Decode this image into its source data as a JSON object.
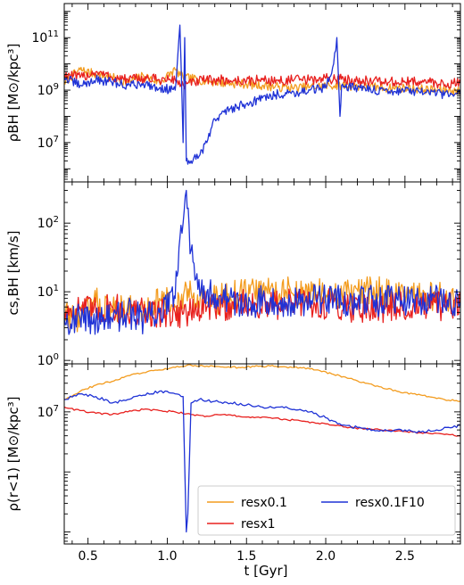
{
  "figure": {
    "x_label": "t [Gyr]",
    "x_tick_labels": [
      "0.5",
      "1.0",
      "1.5",
      "2.0",
      "2.5"
    ]
  },
  "legend": {
    "entries": [
      {
        "name": "resx0.1",
        "color": "#f39c1f"
      },
      {
        "name": "resx1",
        "color": "#e8201e"
      },
      {
        "name": "resx0.1F10",
        "color": "#1f32d6"
      }
    ]
  },
  "chart_data": [
    {
      "type": "line",
      "ylabel": "ρBH [M⊙/kpc³]",
      "xlim": [
        0.35,
        2.85
      ],
      "ylim_log10": [
        5.5,
        12.3
      ],
      "yscale": "log",
      "ytick_labels": [
        "10^7",
        "10^9",
        "10^11"
      ],
      "grid": false,
      "series": [
        {
          "name": "resx0.1",
          "x": [
            0.35,
            0.45,
            0.55,
            0.65,
            0.75,
            0.85,
            0.95,
            1.05,
            1.1,
            1.2,
            1.3,
            1.4,
            1.5,
            1.6,
            1.7,
            1.8,
            1.9,
            2.0,
            2.1,
            2.2,
            2.3,
            2.4,
            2.5,
            2.6,
            2.7,
            2.8,
            2.85
          ],
          "y": [
            2000000000.0,
            6000000000.0,
            4000000000.0,
            3000000000.0,
            2000000000.0,
            3500000000.0,
            2000000000.0,
            6000000000.0,
            3000000000.0,
            2500000000.0,
            2000000000.0,
            1800000000.0,
            1700000000.0,
            1500000000.0,
            1300000000.0,
            1200000000.0,
            1300000000.0,
            1500000000.0,
            1500000000.0,
            1400000000.0,
            1300000000.0,
            1200000000.0,
            1200000000.0,
            1100000000.0,
            1000000000.0,
            1000000000.0,
            900000000.0
          ]
        },
        {
          "name": "resx1",
          "x": [
            0.35,
            0.45,
            0.55,
            0.65,
            0.75,
            0.85,
            0.95,
            1.05,
            1.1,
            1.2,
            1.3,
            1.4,
            1.5,
            1.6,
            1.7,
            1.8,
            1.9,
            2.0,
            2.1,
            2.2,
            2.3,
            2.4,
            2.5,
            2.6,
            2.7,
            2.8,
            2.85
          ],
          "y": [
            4000000000.0,
            3000000000.0,
            5000000000.0,
            3000000000.0,
            2500000000.0,
            2800000000.0,
            2500000000.0,
            2500000000.0,
            1500000000.0,
            2200000000.0,
            2500000000.0,
            2300000000.0,
            2200000000.0,
            2500000000.0,
            2200000000.0,
            2500000000.0,
            2400000000.0,
            2800000000.0,
            2600000000.0,
            2400000000.0,
            2200000000.0,
            2000000000.0,
            2000000000.0,
            2200000000.0,
            1800000000.0,
            1800000000.0,
            1800000000.0
          ]
        },
        {
          "name": "resx0.1F10",
          "x": [
            0.35,
            0.45,
            0.55,
            0.65,
            0.75,
            0.85,
            0.95,
            1.05,
            1.08,
            1.1,
            1.11,
            1.12,
            1.13,
            1.15,
            1.2,
            1.25,
            1.3,
            1.4,
            1.5,
            1.6,
            1.7,
            1.8,
            1.9,
            2.0,
            2.05,
            2.07,
            2.09,
            2.1,
            2.2,
            2.3,
            2.4,
            2.5,
            2.6,
            2.7,
            2.8,
            2.85
          ],
          "y": [
            3000000000.0,
            1500000000.0,
            2500000000.0,
            2000000000.0,
            1500000000.0,
            1800000000.0,
            1200000000.0,
            1000000000.0,
            300000000000.0,
            10000000.0,
            100000000000.0,
            2000000.0,
            1500000.0,
            2000000.0,
            3000000.0,
            10000000.0,
            80000000.0,
            200000000.0,
            300000000.0,
            500000000.0,
            700000000.0,
            800000000.0,
            1000000000.0,
            1200000000.0,
            10000000000.0,
            100000000000.0,
            100000000.0,
            1500000000.0,
            1200000000.0,
            1000000000.0,
            900000000.0,
            1000000000.0,
            800000000.0,
            700000000.0,
            700000000.0,
            700000000.0
          ]
        }
      ]
    },
    {
      "type": "line",
      "ylabel": "cs,BH [km/s]",
      "xlim": [
        0.35,
        2.85
      ],
      "ylim_log10": [
        -0.05,
        2.6
      ],
      "yscale": "log",
      "ytick_labels": [
        "10^0",
        "10^1",
        "10^2"
      ],
      "grid": false,
      "series": [
        {
          "name": "resx0.1",
          "x": [
            0.35,
            0.45,
            0.55,
            0.65,
            0.75,
            0.85,
            0.95,
            1.05,
            1.15,
            1.25,
            1.35,
            1.45,
            1.55,
            1.65,
            1.75,
            1.85,
            1.95,
            2.05,
            2.15,
            2.25,
            2.35,
            2.45,
            2.55,
            2.65,
            2.75,
            2.85
          ],
          "y": [
            5,
            4,
            7,
            5,
            6,
            5,
            8,
            6,
            10,
            7,
            8,
            9,
            10,
            11,
            10,
            9,
            10,
            8,
            9,
            10,
            10,
            9,
            8,
            9,
            8,
            7
          ]
        },
        {
          "name": "resx1",
          "x": [
            0.35,
            0.45,
            0.55,
            0.65,
            0.75,
            0.85,
            0.95,
            1.05,
            1.15,
            1.25,
            1.35,
            1.45,
            1.55,
            1.65,
            1.75,
            1.85,
            1.95,
            2.05,
            2.15,
            2.25,
            2.35,
            2.45,
            2.55,
            2.65,
            2.75,
            2.85
          ],
          "y": [
            5,
            6,
            5,
            6,
            5,
            5,
            5,
            5,
            5,
            6,
            6,
            7,
            6,
            6,
            7,
            7,
            6,
            7,
            6,
            6,
            6,
            6,
            6,
            6,
            6,
            6
          ]
        },
        {
          "name": "resx0.1F10",
          "x": [
            0.35,
            0.45,
            0.55,
            0.65,
            0.75,
            0.85,
            0.95,
            1.05,
            1.08,
            1.1,
            1.12,
            1.15,
            1.2,
            1.25,
            1.35,
            1.45,
            1.55,
            1.65,
            1.75,
            1.85,
            1.95,
            2.05,
            2.15,
            2.25,
            2.35,
            2.45,
            2.55,
            2.65,
            2.75,
            2.85
          ],
          "y": [
            4,
            4,
            4,
            4,
            5,
            4,
            5,
            8,
            60,
            100,
            300,
            40,
            15,
            10,
            8,
            7,
            7,
            8,
            7,
            7,
            8,
            8,
            7,
            8,
            7,
            8,
            7,
            8,
            7,
            7
          ]
        }
      ]
    },
    {
      "type": "line",
      "ylabel": "ρ(r<1) [M⊙/kpc³]",
      "xlim": [
        0.35,
        2.85
      ],
      "ylim_log10": [
        4.8,
        7.8
      ],
      "yscale": "log",
      "ytick_labels": [
        "10^7"
      ],
      "grid": false,
      "series": [
        {
          "name": "resx0.1",
          "x": [
            0.35,
            0.45,
            0.55,
            0.65,
            0.75,
            0.85,
            0.95,
            1.05,
            1.15,
            1.25,
            1.35,
            1.45,
            1.55,
            1.65,
            1.75,
            1.85,
            1.95,
            2.05,
            2.15,
            2.25,
            2.35,
            2.45,
            2.55,
            2.65,
            2.75,
            2.85
          ],
          "y": [
            16000000.0,
            22000000.0,
            28000000.0,
            32000000.0,
            40000000.0,
            45000000.0,
            50000000.0,
            55000000.0,
            60000000.0,
            58000000.0,
            56000000.0,
            55000000.0,
            57000000.0,
            58000000.0,
            56000000.0,
            54000000.0,
            50000000.0,
            42000000.0,
            36000000.0,
            30000000.0,
            26000000.0,
            22000000.0,
            20000000.0,
            18000000.0,
            16000000.0,
            15000000.0
          ]
        },
        {
          "name": "resx1",
          "x": [
            0.35,
            0.45,
            0.55,
            0.65,
            0.75,
            0.85,
            0.95,
            1.05,
            1.15,
            1.25,
            1.35,
            1.45,
            1.55,
            1.65,
            1.75,
            1.85,
            1.95,
            2.05,
            2.15,
            2.25,
            2.35,
            2.45,
            2.55,
            2.65,
            2.75,
            2.85
          ],
          "y": [
            12000000.0,
            10500000.0,
            9500000.0,
            9000000.0,
            10000000.0,
            11000000.0,
            10500000.0,
            10000000.0,
            9000000.0,
            8500000.0,
            9000000.0,
            8500000.0,
            8000000.0,
            8000000.0,
            7500000.0,
            7000000.0,
            6500000.0,
            6000000.0,
            5500000.0,
            5200000.0,
            5000000.0,
            4800000.0,
            4600000.0,
            4400000.0,
            4200000.0,
            4000000.0
          ]
        },
        {
          "name": "resx0.1F10",
          "x": [
            0.35,
            0.45,
            0.55,
            0.65,
            0.75,
            0.85,
            0.95,
            1.05,
            1.1,
            1.12,
            1.13,
            1.15,
            1.2,
            1.3,
            1.4,
            1.5,
            1.6,
            1.7,
            1.8,
            1.9,
            2.0,
            2.1,
            2.2,
            2.3,
            2.4,
            2.5,
            2.6,
            2.7,
            2.8,
            2.85
          ],
          "y": [
            16000000.0,
            20000000.0,
            18000000.0,
            14000000.0,
            16000000.0,
            19000000.0,
            22000000.0,
            20000000.0,
            18000000.0,
            100000.0,
            200000.0,
            14000000.0,
            16000000.0,
            15000000.0,
            14000000.0,
            13000000.0,
            12000000.0,
            12000000.0,
            11000000.0,
            10000000.0,
            8000000.0,
            6000000.0,
            5500000.0,
            5000000.0,
            4800000.0,
            5000000.0,
            4600000.0,
            5000000.0,
            5500000.0,
            6000000.0
          ]
        }
      ]
    }
  ]
}
